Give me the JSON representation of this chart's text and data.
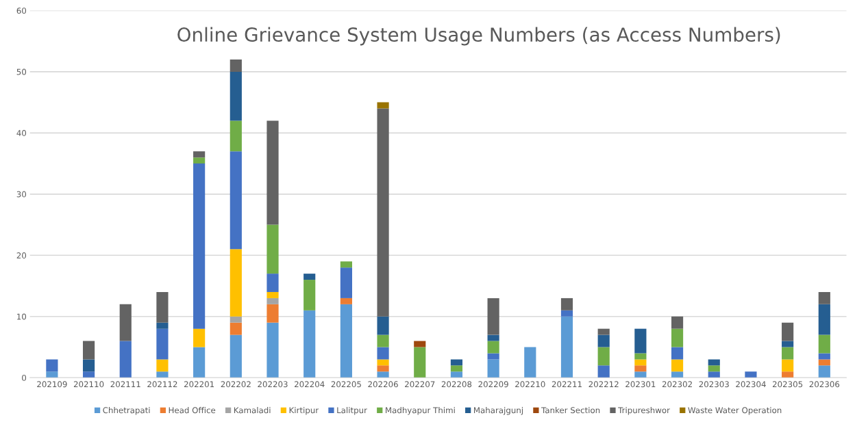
{
  "chart_data": {
    "type": "bar",
    "stacked": true,
    "title": "Online Grievance System Usage Numbers (as Access Numbers)",
    "categories": [
      "202109",
      "202110",
      "202111",
      "202112",
      "202201",
      "202202",
      "202203",
      "202204",
      "202205",
      "202206",
      "202207",
      "202208",
      "202209",
      "202210",
      "202211",
      "202212",
      "202301",
      "202302",
      "202303",
      "202304",
      "202305",
      "202306"
    ],
    "series": [
      {
        "name": "Chhetrapati",
        "color": "#5b9bd5",
        "values": [
          1,
          0,
          0,
          1,
          5,
          7,
          9,
          11,
          12,
          1,
          0,
          1,
          3,
          5,
          10,
          0,
          1,
          1,
          0,
          0,
          0,
          2
        ]
      },
      {
        "name": "Head Office",
        "color": "#ed7d31",
        "values": [
          0,
          0,
          0,
          0,
          0,
          2,
          3,
          0,
          1,
          1,
          0,
          0,
          0,
          0,
          0,
          0,
          1,
          0,
          0,
          0,
          1,
          1
        ]
      },
      {
        "name": "Kamaladi",
        "color": "#a5a5a5",
        "values": [
          0,
          0,
          0,
          0,
          0,
          1,
          1,
          0,
          0,
          0,
          0,
          0,
          0,
          0,
          0,
          0,
          0,
          0,
          0,
          0,
          0,
          0
        ]
      },
      {
        "name": "Kirtipur",
        "color": "#ffc000",
        "values": [
          0,
          0,
          0,
          2,
          3,
          11,
          1,
          0,
          0,
          1,
          0,
          0,
          0,
          0,
          0,
          0,
          1,
          2,
          0,
          0,
          2,
          0
        ]
      },
      {
        "name": "Lalitpur",
        "color": "#4472c4",
        "values": [
          2,
          1,
          6,
          5,
          27,
          16,
          3,
          0,
          5,
          2,
          0,
          0,
          1,
          0,
          1,
          2,
          0,
          2,
          1,
          1,
          0,
          1
        ]
      },
      {
        "name": "Madhyapur Thimi",
        "color": "#70ad47",
        "values": [
          0,
          0,
          0,
          0,
          1,
          5,
          8,
          5,
          1,
          2,
          5,
          1,
          2,
          0,
          0,
          3,
          1,
          3,
          1,
          0,
          2,
          3
        ]
      },
      {
        "name": "Maharajgunj",
        "color": "#255e91",
        "values": [
          0,
          2,
          0,
          1,
          0,
          8,
          0,
          1,
          0,
          3,
          0,
          1,
          1,
          0,
          0,
          2,
          4,
          0,
          1,
          0,
          1,
          5
        ]
      },
      {
        "name": "Tanker Section",
        "color": "#9e480e",
        "values": [
          0,
          0,
          0,
          0,
          0,
          0,
          0,
          0,
          0,
          0,
          1,
          0,
          0,
          0,
          0,
          0,
          0,
          0,
          0,
          0,
          0,
          0
        ]
      },
      {
        "name": "Tripureshwor",
        "color": "#636363",
        "values": [
          0,
          3,
          6,
          5,
          1,
          2,
          17,
          0,
          0,
          34,
          0,
          0,
          6,
          0,
          2,
          1,
          0,
          2,
          0,
          0,
          3,
          2
        ]
      },
      {
        "name": "Waste Water Operation",
        "color": "#997300",
        "values": [
          0,
          0,
          0,
          0,
          0,
          0,
          0,
          0,
          0,
          1,
          0,
          0,
          0,
          0,
          0,
          0,
          0,
          0,
          0,
          0,
          0,
          0
        ]
      }
    ],
    "ylim": [
      0,
      60
    ],
    "yticks": [
      0,
      10,
      20,
      30,
      40,
      50,
      60
    ],
    "grid": "y",
    "legend": "bottom"
  }
}
